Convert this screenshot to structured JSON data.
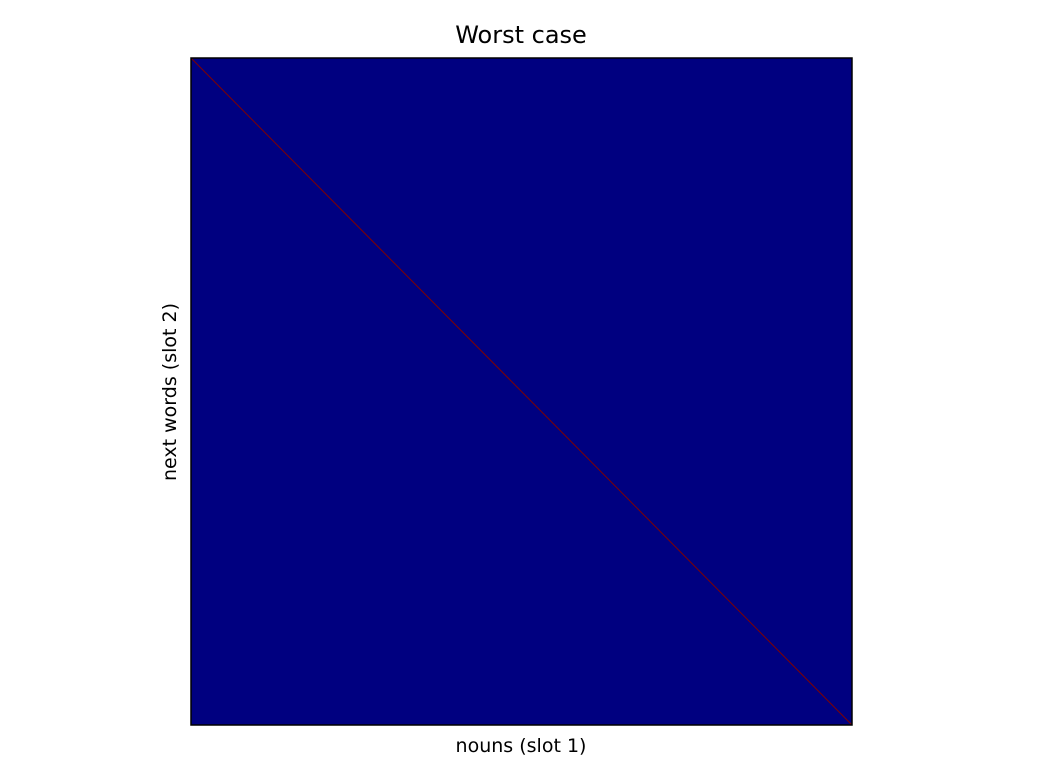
{
  "chart_data": {
    "type": "heatmap",
    "title": "Worst case",
    "xlabel": "nouns (slot 1)",
    "ylabel": "next words (slot 2)",
    "ticks_shown": false,
    "grid": false,
    "legend": "none",
    "colormap": "jet",
    "matrix_pattern": "identity",
    "background_value": 0,
    "diagonal_value": 1,
    "colors": {
      "background": "#000080",
      "diagonal": "#800000",
      "frame": "#000000"
    }
  }
}
